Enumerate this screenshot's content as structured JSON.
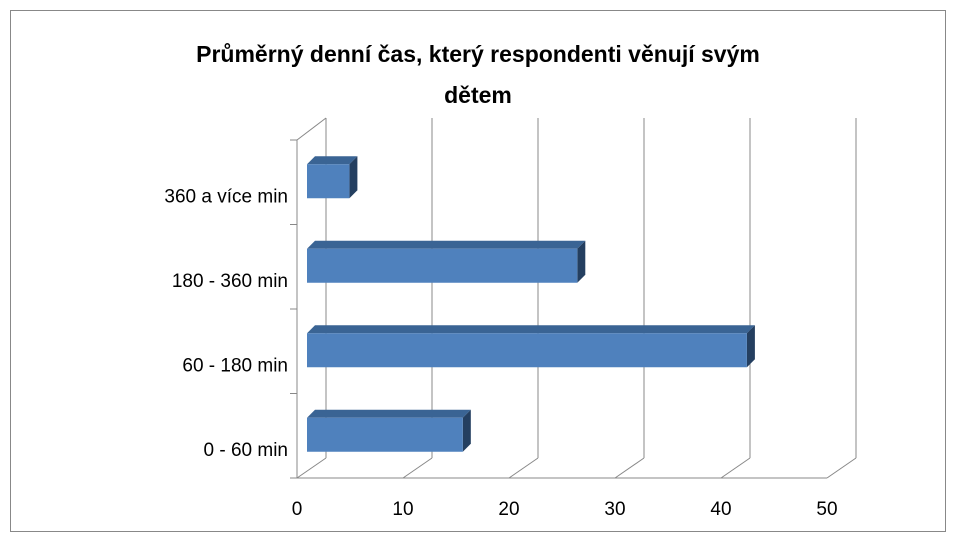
{
  "chart_data": {
    "type": "bar3d_horizontal",
    "title_lines": [
      "Průměrný denní čas, který respondenti věnují svým",
      "dětem"
    ],
    "categories": [
      "0 - 60 min",
      "60 - 180 min",
      "180 - 360 min",
      "360 a více min"
    ],
    "values": [
      14.7,
      41.5,
      25.5,
      4
    ],
    "color": "#4f81bd",
    "xlim": [
      0,
      50
    ],
    "xticks": [
      0,
      10,
      20,
      30,
      40,
      50
    ],
    "grid": true
  }
}
